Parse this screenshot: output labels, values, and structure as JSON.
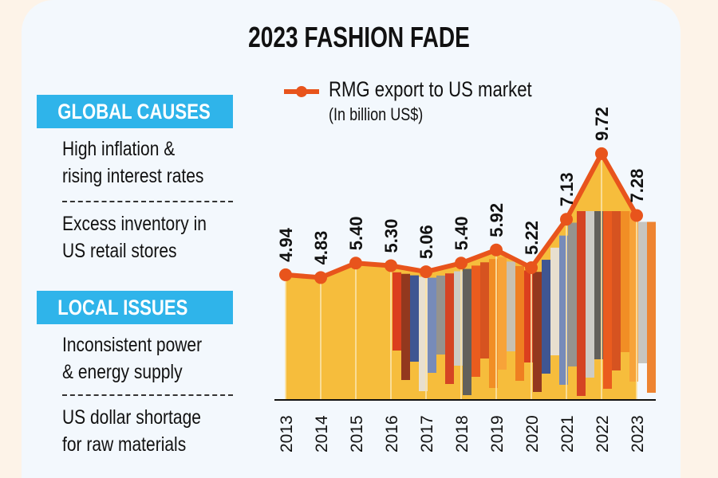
{
  "title": "2023 FASHION FADE",
  "global": {
    "heading": "GLOBAL CAUSES",
    "items": [
      [
        "High inflation &",
        "rising interest rates"
      ],
      [
        "Excess inventory in",
        "US retail stores"
      ]
    ]
  },
  "local": {
    "heading": "LOCAL ISSUES",
    "items": [
      [
        "Inconsistent power",
        "& energy supply"
      ],
      [
        "US dollar shortage",
        "for raw materials"
      ]
    ]
  },
  "colors": {
    "line": "#e8541c",
    "area": "#f6bd3c",
    "section": "#2fb4ea",
    "card": "#f3f8fd",
    "page": "#fdf3e8"
  },
  "chart_data": {
    "type": "line",
    "title": "2023 FASHION FADE",
    "series": [
      {
        "name": "RMG export to US market",
        "unit": "(In billion US$)",
        "values": [
          4.94,
          4.83,
          5.4,
          5.3,
          5.06,
          5.4,
          5.92,
          5.22,
          7.13,
          9.72,
          7.28
        ]
      }
    ],
    "categories": [
      "2013",
      "2014",
      "2015",
      "2016",
      "2017",
      "2018",
      "2019",
      "2020",
      "2021",
      "2022",
      "2023"
    ],
    "data_labels": [
      "4.94",
      "4.83",
      "5.40",
      "5.30",
      "5.06",
      "5.40",
      "5.92",
      "5.22",
      "7.13",
      "9.72",
      "7.28"
    ],
    "legend": {
      "label": "RMG export to US market",
      "sublabel": "(In billion US$)",
      "position": "top"
    },
    "ylim": [
      0,
      10
    ],
    "grid": false,
    "xlabel": "",
    "ylabel": ""
  }
}
